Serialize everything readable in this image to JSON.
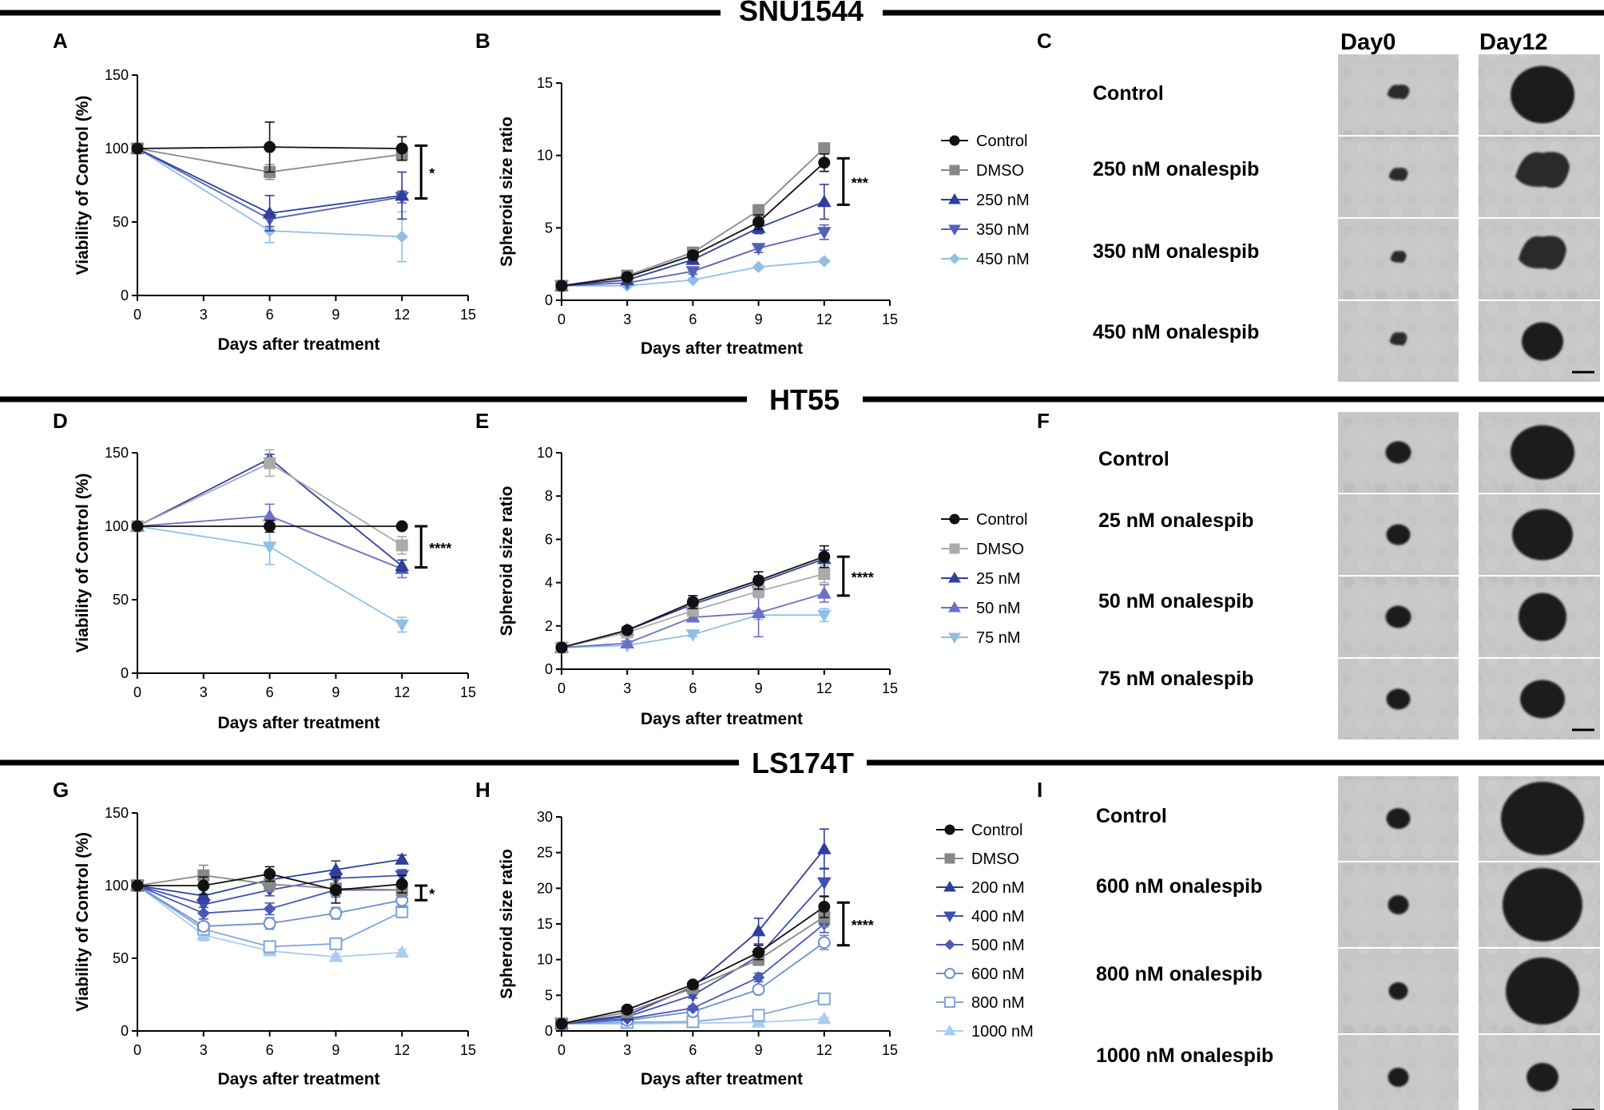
{
  "sections": [
    {
      "title": "SNU1544"
    },
    {
      "title": "HT55"
    },
    {
      "title": "LS174T"
    }
  ],
  "panel_letters": [
    "A",
    "B",
    "C",
    "D",
    "E",
    "F",
    "G",
    "H",
    "I"
  ],
  "colors": {
    "control": "#111111",
    "dmso": "#888888",
    "blue1": "#2e3f9c",
    "blue2": "#5560b8",
    "light": "#8fbfe6",
    "mid": "#6d8fd0"
  },
  "image_columns": [
    "Day0",
    "Day12"
  ],
  "image_rows": [
    [
      "Control",
      "250 nM onalespib",
      "350 nM onalespib",
      "450 nM onalespib"
    ],
    [
      "Control",
      "25 nM onalespib",
      "50 nM onalespib",
      "75 nM onalespib"
    ],
    [
      "Control",
      "600 nM  onalespib",
      "800 nM  onalespib",
      "1000 nM  onalespib"
    ]
  ],
  "chart_data": [
    {
      "id": "A",
      "type": "line",
      "xlabel": "Days after treatment",
      "ylabel": "Viability of Control (%)",
      "xlim": [
        0,
        15
      ],
      "ylim": [
        0,
        150
      ],
      "xticks": [
        0,
        3,
        6,
        9,
        12,
        15
      ],
      "yticks": [
        0,
        50,
        100,
        150
      ],
      "significance": "*",
      "bracket": [
        66,
        102
      ],
      "series": [
        {
          "name": "Control",
          "marker": "circle",
          "color": "#111111",
          "x": [
            0,
            6,
            12
          ],
          "y": [
            100,
            101,
            100
          ],
          "err": [
            0,
            17,
            8
          ]
        },
        {
          "name": "DMSO",
          "marker": "square",
          "color": "#888888",
          "x": [
            0,
            6,
            12
          ],
          "y": [
            100,
            84,
            96
          ],
          "err": [
            0,
            5,
            4
          ]
        },
        {
          "name": "250 nM",
          "marker": "triangle",
          "color": "#2e3f9c",
          "x": [
            0,
            6,
            12
          ],
          "y": [
            100,
            56,
            68
          ],
          "err": [
            0,
            12,
            16
          ]
        },
        {
          "name": "350 nM",
          "marker": "triangle-down",
          "color": "#5560b8",
          "x": [
            0,
            6,
            12
          ],
          "y": [
            100,
            52,
            67
          ],
          "err": [
            0,
            5,
            4
          ]
        },
        {
          "name": "450 nM",
          "marker": "diamond",
          "color": "#8fbfe6",
          "x": [
            0,
            6,
            12
          ],
          "y": [
            100,
            44,
            40
          ],
          "err": [
            0,
            8,
            17
          ]
        }
      ]
    },
    {
      "id": "B",
      "type": "line",
      "xlabel": "Days after treatment",
      "ylabel": "Spheroid size ratio",
      "xlim": [
        0,
        15
      ],
      "ylim": [
        0,
        15
      ],
      "xticks": [
        0,
        3,
        6,
        9,
        12,
        15
      ],
      "yticks": [
        0,
        5,
        10,
        15
      ],
      "significance": "***",
      "bracket": [
        6.6,
        9.8
      ],
      "legend": [
        "Control",
        "DMSO",
        "250 nM",
        "350 nM",
        "450 nM"
      ],
      "series": [
        {
          "name": "Control",
          "marker": "circle",
          "color": "#111111",
          "x": [
            0,
            3,
            6,
            9,
            12
          ],
          "y": [
            1,
            1.6,
            3.1,
            5.4,
            9.5
          ],
          "err": [
            0,
            0.2,
            0.3,
            0.5,
            0.6
          ]
        },
        {
          "name": "DMSO",
          "marker": "square",
          "color": "#888888",
          "x": [
            0,
            3,
            6,
            9,
            12
          ],
          "y": [
            1,
            1.7,
            3.3,
            6.2,
            10.5
          ],
          "err": [
            0,
            0.2,
            0.3,
            0.4,
            0.3
          ]
        },
        {
          "name": "250 nM",
          "marker": "triangle",
          "color": "#2e3f9c",
          "x": [
            0,
            3,
            6,
            9,
            12
          ],
          "y": [
            1,
            1.4,
            2.8,
            5.0,
            6.8
          ],
          "err": [
            0,
            0.2,
            0.3,
            0.4,
            1.2
          ]
        },
        {
          "name": "350 nM",
          "marker": "triangle-down",
          "color": "#5560b8",
          "x": [
            0,
            3,
            6,
            9,
            12
          ],
          "y": [
            1,
            1.2,
            2.0,
            3.6,
            4.7
          ],
          "err": [
            0,
            0.1,
            0.2,
            0.3,
            0.5
          ]
        },
        {
          "name": "450 nM",
          "marker": "diamond",
          "color": "#8fbfe6",
          "x": [
            0,
            3,
            6,
            9,
            12
          ],
          "y": [
            1,
            1.0,
            1.4,
            2.3,
            2.7
          ],
          "err": [
            0,
            0.1,
            0.1,
            0.1,
            0.1
          ]
        }
      ]
    },
    {
      "id": "D",
      "type": "line",
      "xlabel": "Days after treatment",
      "ylabel": "Viability of Control (%)",
      "xlim": [
        0,
        15
      ],
      "ylim": [
        0,
        150
      ],
      "xticks": [
        0,
        3,
        6,
        9,
        12,
        15
      ],
      "yticks": [
        0,
        50,
        100,
        150
      ],
      "significance": "****",
      "bracket": [
        72,
        100
      ],
      "series": [
        {
          "name": "Control",
          "marker": "circle",
          "color": "#111111",
          "x": [
            0,
            6,
            12
          ],
          "y": [
            100,
            100,
            100
          ],
          "err": [
            0,
            4,
            0
          ]
        },
        {
          "name": "DMSO",
          "marker": "square",
          "color": "#aaaaaa",
          "x": [
            0,
            6,
            12
          ],
          "y": [
            100,
            143,
            87
          ],
          "err": [
            0,
            9,
            6
          ]
        },
        {
          "name": "25 nM",
          "marker": "triangle",
          "color": "#2e3f9c",
          "x": [
            0,
            6,
            12
          ],
          "y": [
            100,
            146,
            73
          ],
          "err": [
            0,
            3,
            4
          ]
        },
        {
          "name": "50 nM",
          "marker": "triangle",
          "color": "#6d6fc4",
          "x": [
            0,
            6,
            12
          ],
          "y": [
            100,
            107,
            71
          ],
          "err": [
            0,
            8,
            6
          ]
        },
        {
          "name": "75 nM",
          "marker": "triangle-down",
          "color": "#8fbfe6",
          "x": [
            0,
            6,
            12
          ],
          "y": [
            100,
            86,
            33
          ],
          "err": [
            0,
            12,
            5
          ]
        }
      ]
    },
    {
      "id": "E",
      "type": "line",
      "xlabel": "Days after treatment",
      "ylabel": "Spheroid size ratio",
      "xlim": [
        0,
        15
      ],
      "ylim": [
        0,
        10
      ],
      "xticks": [
        0,
        3,
        6,
        9,
        12,
        15
      ],
      "yticks": [
        0,
        2,
        4,
        6,
        8,
        10
      ],
      "significance": "****",
      "bracket": [
        3.4,
        5.2
      ],
      "legend": [
        "Control",
        "DMSO",
        "25 nM",
        "50 nM",
        "75 nM"
      ],
      "series": [
        {
          "name": "Control",
          "marker": "circle",
          "color": "#111111",
          "x": [
            0,
            3,
            6,
            9,
            12
          ],
          "y": [
            1,
            1.8,
            3.1,
            4.1,
            5.2
          ],
          "err": [
            0,
            0.1,
            0.3,
            0.4,
            0.5
          ]
        },
        {
          "name": "DMSO",
          "marker": "square",
          "color": "#aaaaaa",
          "x": [
            0,
            3,
            6,
            9,
            12
          ],
          "y": [
            1,
            1.7,
            2.7,
            3.6,
            4.4
          ],
          "err": [
            0,
            0.1,
            0.2,
            0.3,
            0.4
          ]
        },
        {
          "name": "25 nM",
          "marker": "triangle",
          "color": "#2e3f9c",
          "x": [
            0,
            3,
            6,
            9,
            12
          ],
          "y": [
            1,
            1.8,
            3.0,
            4.0,
            5.1
          ],
          "err": [
            0,
            0.1,
            0.3,
            0.3,
            0.4
          ]
        },
        {
          "name": "50 nM",
          "marker": "triangle",
          "color": "#6d6fc4",
          "x": [
            0,
            3,
            6,
            9,
            12
          ],
          "y": [
            1,
            1.2,
            2.4,
            2.6,
            3.5
          ],
          "err": [
            0,
            0.1,
            0.2,
            1.1,
            0.4
          ]
        },
        {
          "name": "75 nM",
          "marker": "triangle-down",
          "color": "#8fbfe6",
          "x": [
            0,
            3,
            6,
            9,
            12
          ],
          "y": [
            1,
            1.1,
            1.6,
            2.5,
            2.5
          ],
          "err": [
            0,
            0.1,
            0.1,
            0.2,
            0.3
          ]
        }
      ]
    },
    {
      "id": "G",
      "type": "line",
      "xlabel": "Days after treatment",
      "ylabel": "Viability of Control (%)",
      "xlim": [
        0,
        15
      ],
      "ylim": [
        0,
        150
      ],
      "xticks": [
        0,
        3,
        6,
        9,
        12,
        15
      ],
      "yticks": [
        0,
        50,
        100,
        150
      ],
      "significance": "*",
      "bracket": [
        90,
        100
      ],
      "series": [
        {
          "name": "Control",
          "marker": "circle",
          "color": "#111111",
          "x": [
            0,
            3,
            6,
            9,
            12
          ],
          "y": [
            100,
            100,
            108,
            97,
            101
          ],
          "err": [
            0,
            6,
            5,
            9,
            6
          ]
        },
        {
          "name": "DMSO",
          "marker": "square",
          "color": "#888888",
          "x": [
            0,
            3,
            6,
            9,
            12
          ],
          "y": [
            100,
            107,
            101,
            98,
            97
          ],
          "err": [
            0,
            7,
            5,
            6,
            5
          ]
        },
        {
          "name": "200 nM",
          "marker": "triangle",
          "color": "#2e3f9c",
          "x": [
            0,
            3,
            6,
            9,
            12
          ],
          "y": [
            100,
            93,
            104,
            111,
            118
          ],
          "err": [
            0,
            5,
            6,
            6,
            3
          ]
        },
        {
          "name": "400 nM",
          "marker": "triangle-down",
          "color": "#3f4fb0",
          "x": [
            0,
            3,
            6,
            9,
            12
          ],
          "y": [
            100,
            87,
            97,
            105,
            107
          ],
          "err": [
            0,
            5,
            4,
            5,
            4
          ]
        },
        {
          "name": "500 nM",
          "marker": "diamond",
          "color": "#4b59b8",
          "x": [
            0,
            3,
            6,
            9,
            12
          ],
          "y": [
            100,
            81,
            84,
            97,
            97
          ],
          "err": [
            0,
            4,
            4,
            4,
            4
          ]
        },
        {
          "name": "600 nM",
          "marker": "circle-open",
          "color": "#6d8fd0",
          "x": [
            0,
            3,
            6,
            9,
            12
          ],
          "y": [
            100,
            72,
            74,
            81,
            90
          ],
          "err": [
            0,
            3,
            4,
            4,
            5
          ]
        },
        {
          "name": "800 nM",
          "marker": "square-open",
          "color": "#7fa7dc",
          "x": [
            0,
            3,
            6,
            9,
            12
          ],
          "y": [
            100,
            70,
            58,
            60,
            82
          ],
          "err": [
            0,
            3,
            3,
            3,
            4
          ]
        },
        {
          "name": "1000 nM",
          "marker": "triangle",
          "color": "#a9cdee",
          "x": [
            0,
            3,
            6,
            9,
            12
          ],
          "y": [
            100,
            66,
            55,
            51,
            54
          ],
          "err": [
            0,
            4,
            3,
            2,
            2
          ]
        }
      ]
    },
    {
      "id": "H",
      "type": "line",
      "xlabel": "Days after treatment",
      "ylabel": "Spheroid size ratio",
      "xlim": [
        0,
        15
      ],
      "ylim": [
        0,
        30
      ],
      "xticks": [
        0,
        3,
        6,
        9,
        12,
        15
      ],
      "yticks": [
        0,
        5,
        10,
        15,
        20,
        25,
        30
      ],
      "significance": "****",
      "bracket": [
        12,
        18
      ],
      "legend": [
        "Control",
        "DMSO",
        "200 nM",
        "400 nM",
        "500 nM",
        "600 nM",
        "800 nM",
        "1000 nM"
      ],
      "series": [
        {
          "name": "Control",
          "marker": "circle",
          "color": "#111111",
          "x": [
            0,
            3,
            6,
            9,
            12
          ],
          "y": [
            1,
            3.0,
            6.5,
            11.0,
            17.4
          ],
          "err": [
            0,
            0.3,
            0.4,
            1.0,
            1.5
          ]
        },
        {
          "name": "DMSO",
          "marker": "square",
          "color": "#888888",
          "x": [
            0,
            3,
            6,
            9,
            12
          ],
          "y": [
            1,
            2.6,
            6.0,
            10.0,
            16.0
          ],
          "err": [
            0,
            0.3,
            0.4,
            0.8,
            1.4
          ]
        },
        {
          "name": "200 nM",
          "marker": "triangle",
          "color": "#2e3f9c",
          "x": [
            0,
            3,
            6,
            9,
            12
          ],
          "y": [
            1,
            2.2,
            6.2,
            14.0,
            25.5
          ],
          "err": [
            0,
            0.3,
            0.5,
            1.8,
            2.8
          ]
        },
        {
          "name": "400 nM",
          "marker": "triangle-down",
          "color": "#3f4fb0",
          "x": [
            0,
            3,
            6,
            9,
            12
          ],
          "y": [
            1,
            2.0,
            5.0,
            10.5,
            20.8
          ],
          "err": [
            0,
            0.3,
            0.4,
            1.0,
            2.0
          ]
        },
        {
          "name": "500 nM",
          "marker": "diamond",
          "color": "#4b59b8",
          "x": [
            0,
            3,
            6,
            9,
            12
          ],
          "y": [
            1,
            1.7,
            3.2,
            7.5,
            15.0
          ],
          "err": [
            0,
            0.2,
            0.3,
            0.6,
            1.2
          ]
        },
        {
          "name": "600 nM",
          "marker": "circle-open",
          "color": "#6d8fd0",
          "x": [
            0,
            3,
            6,
            9,
            12
          ],
          "y": [
            1,
            1.5,
            2.7,
            5.8,
            12.4
          ],
          "err": [
            0,
            0.2,
            0.3,
            0.5,
            1.0
          ]
        },
        {
          "name": "800 nM",
          "marker": "square-open",
          "color": "#7fa7dc",
          "x": [
            0,
            3,
            6,
            9,
            12
          ],
          "y": [
            1,
            1.2,
            1.3,
            2.2,
            4.5
          ],
          "err": [
            0,
            0.1,
            0.2,
            0.3,
            0.4
          ]
        },
        {
          "name": "1000 nM",
          "marker": "triangle",
          "color": "#a9cdee",
          "x": [
            0,
            3,
            6,
            9,
            12
          ],
          "y": [
            1,
            1.0,
            1.1,
            1.2,
            1.7
          ],
          "err": [
            0,
            0.1,
            0.1,
            0.1,
            0.2
          ]
        }
      ]
    }
  ]
}
